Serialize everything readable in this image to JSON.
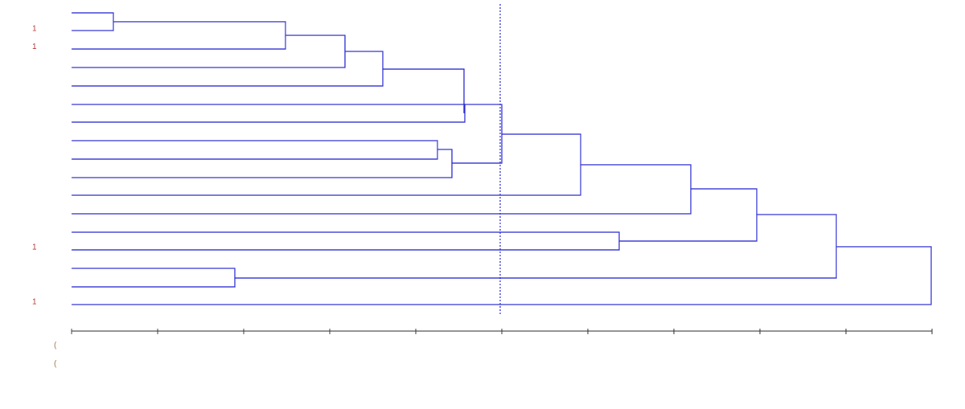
{
  "leaf_labels": [
    {
      "row": 2,
      "text": "1"
    },
    {
      "row": 3,
      "text": "1"
    },
    {
      "row": 14,
      "text": "1"
    },
    {
      "row": 17,
      "text": "1"
    }
  ],
  "footer_labels": [
    "(",
    "("
  ]
}
